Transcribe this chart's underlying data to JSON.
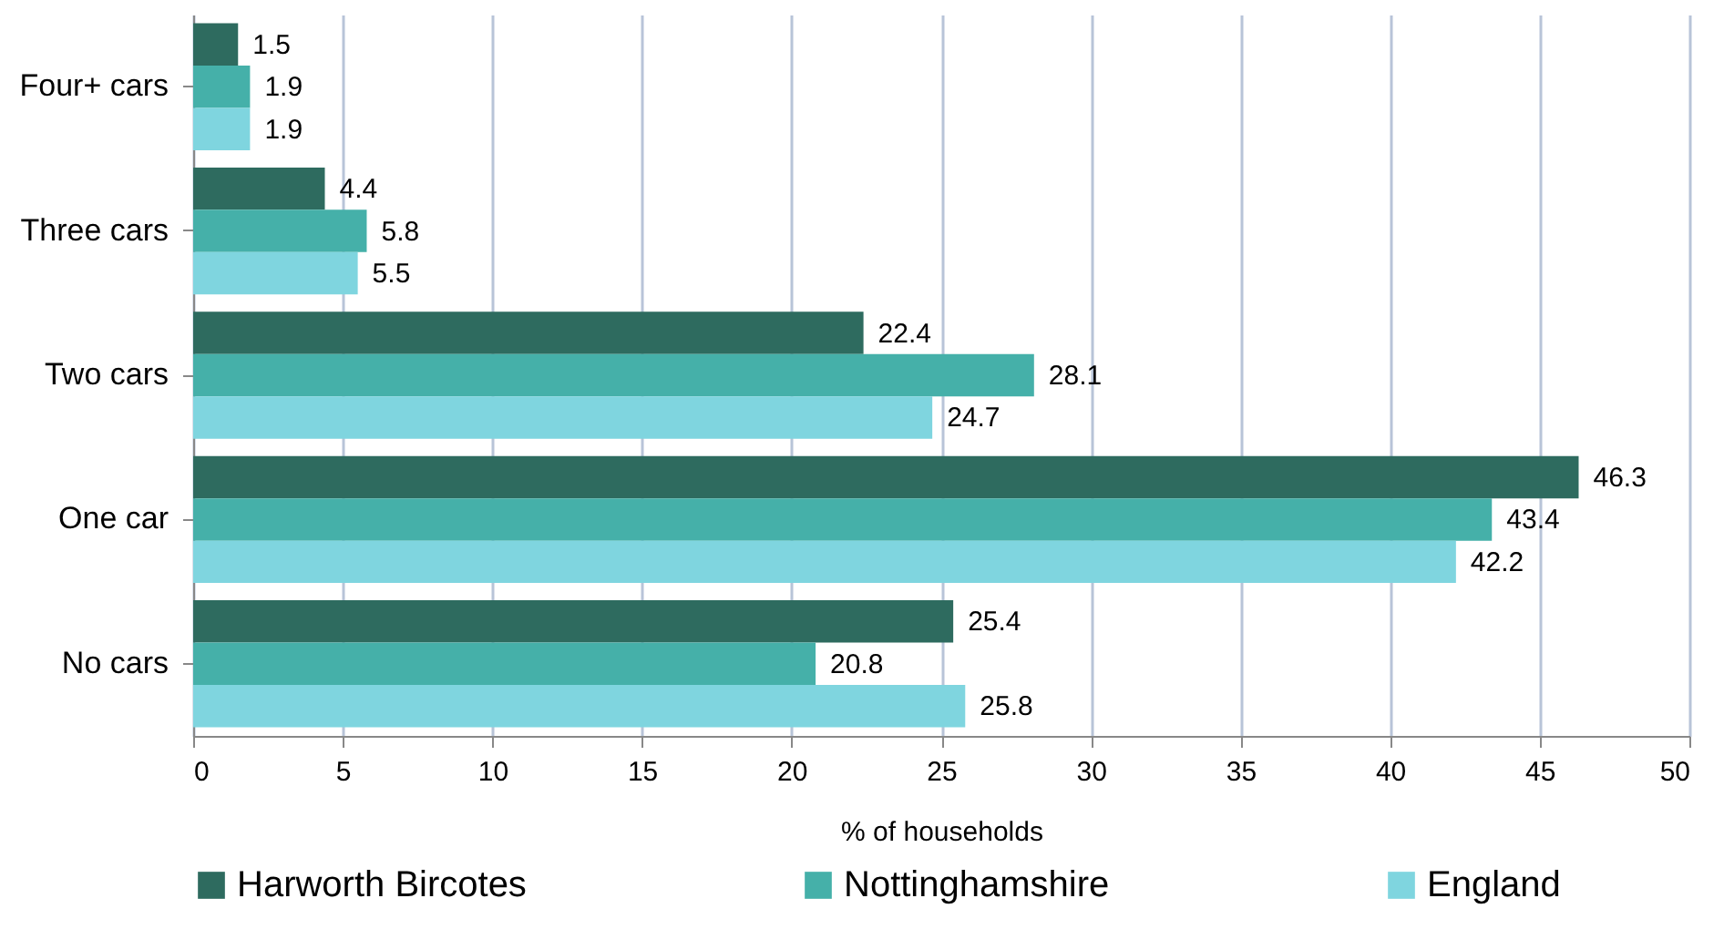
{
  "chart_data": {
    "type": "bar",
    "orientation": "horizontal",
    "xlabel": "% of households",
    "categories": [
      "Four+ cars",
      "Three cars",
      "Two cars",
      "One car",
      "No cars"
    ],
    "series": [
      {
        "name": "Harworth Bircotes",
        "color": "#2e6b5f",
        "values": [
          1.5,
          4.4,
          22.4,
          46.3,
          25.4
        ]
      },
      {
        "name": "Nottinghamshire",
        "color": "#45b0a9",
        "values": [
          1.9,
          5.8,
          28.1,
          43.4,
          20.8
        ]
      },
      {
        "name": "England",
        "color": "#7fd5df",
        "values": [
          1.9,
          5.5,
          24.7,
          42.2,
          25.8
        ]
      }
    ],
    "xlim": [
      0,
      50
    ],
    "xticks": [
      0,
      5,
      10,
      15,
      20,
      25,
      30,
      35,
      40,
      45,
      50
    ],
    "grid": "x",
    "legend": "bottom",
    "data_labels": true
  }
}
